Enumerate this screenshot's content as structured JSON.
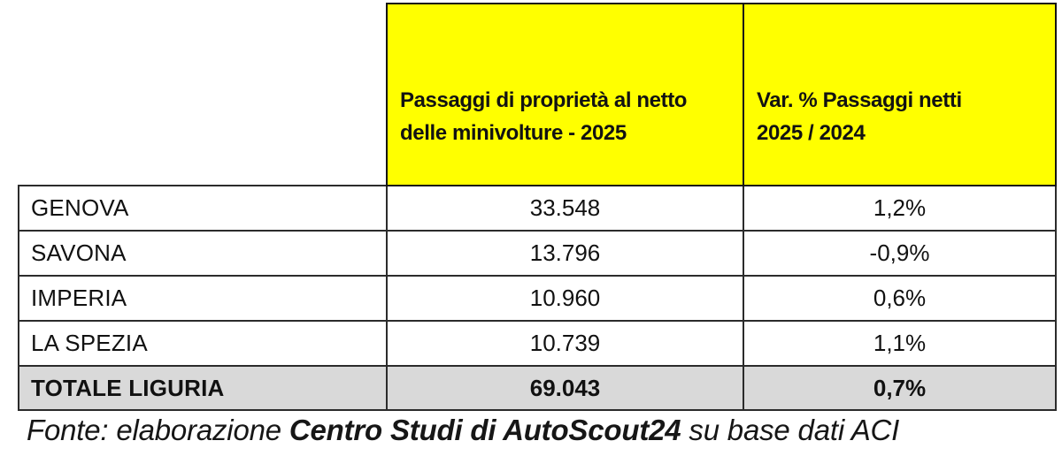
{
  "table": {
    "header": {
      "corner": "",
      "passaggi_label": "Passaggi di proprietà al netto delle minivolture - 2025",
      "passaggi_lines": [
        "Passaggi di proprietà al netto",
        "delle minivolture - 2025"
      ],
      "var_label": "Var. % Passaggi netti 2025 / 2024",
      "var_lines": [
        "Var. % Passaggi netti",
        "2025 / 2024"
      ]
    },
    "rows": [
      {
        "label": "GENOVA",
        "net_transfers": "33.548",
        "var_pct": "1,2%"
      },
      {
        "label": "SAVONA",
        "net_transfers": "13.796",
        "var_pct": "-0,9%"
      },
      {
        "label": "IMPERIA",
        "net_transfers": "10.960",
        "var_pct": "0,6%"
      },
      {
        "label": "LA SPEZIA",
        "net_transfers": "10.739",
        "var_pct": "1,1%"
      }
    ],
    "total": {
      "label": "TOTALE LIGURIA",
      "net_transfers": "69.043",
      "var_pct": "0,7%"
    }
  },
  "footer": {
    "prefix": "Fonte: elaborazione ",
    "source": "Centro Studi di AutoScout24",
    "suffix": " su base dati ACI"
  },
  "colors": {
    "header_bg": "#FFFF00",
    "total_row_bg": "#D9D9D9",
    "border": "#2B2B2B",
    "text": "#111111"
  },
  "chart_data": {
    "type": "table",
    "title": "Passaggi di proprietà al netto delle minivolture - 2025 (Liguria)",
    "columns": [
      "",
      "Passaggi di proprietà al netto delle minivolture - 2025",
      "Var. % Passaggi netti 2025 / 2024"
    ],
    "rows": [
      [
        "GENOVA",
        "33.548",
        "1,2%"
      ],
      [
        "SAVONA",
        "13.796",
        "-0,9%"
      ],
      [
        "IMPERIA",
        "10.960",
        "0,6%"
      ],
      [
        "LA SPEZIA",
        "10.739",
        "1,1%"
      ],
      [
        "TOTALE LIGURIA",
        "69.043",
        "0,7%"
      ]
    ],
    "categories": [
      "GENOVA",
      "SAVONA",
      "IMPERIA",
      "LA SPEZIA"
    ],
    "series": [
      {
        "name": "Passaggi di proprietà al netto delle minivolture - 2025",
        "values": [
          33548,
          13796,
          10960,
          10739
        ]
      },
      {
        "name": "Var. % Passaggi netti 2025 / 2024",
        "values": [
          1.2,
          -0.9,
          0.6,
          1.1
        ]
      }
    ],
    "total": {
      "label": "TOTALE LIGURIA",
      "net_transfers": 69043,
      "var_pct": 0.7
    },
    "source": "Fonte: elaborazione Centro Studi di AutoScout24 su base dati ACI"
  }
}
